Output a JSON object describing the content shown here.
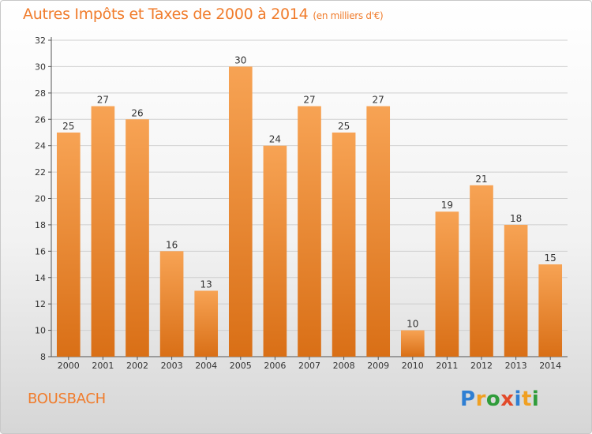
{
  "header": {
    "title": "Autres Impôts et Taxes de 2000 à 2014",
    "unit": "(en milliers d'€)"
  },
  "location": "BOUSBACH",
  "logo": {
    "letters": [
      "P",
      "r",
      "o",
      "x",
      "i",
      "t",
      "i"
    ],
    "colors": [
      "#2f7fd3",
      "#f0a022",
      "#2f9c3a",
      "#e24a2a",
      "#2f7fd3",
      "#f0a022",
      "#2f9c3a"
    ]
  },
  "chart_data": {
    "type": "bar",
    "categories": [
      "2000",
      "2001",
      "2002",
      "2003",
      "2004",
      "2005",
      "2006",
      "2007",
      "2008",
      "2009",
      "2010",
      "2011",
      "2012",
      "2013",
      "2014"
    ],
    "values": [
      25,
      27,
      26,
      16,
      13,
      30,
      24,
      27,
      25,
      27,
      10,
      19,
      21,
      18,
      15
    ],
    "yticks": [
      8,
      10,
      12,
      14,
      16,
      18,
      20,
      22,
      24,
      26,
      28,
      30,
      32
    ],
    "ylim": [
      8,
      32
    ],
    "grid": true,
    "colors": {
      "bar_top": "#f7a354",
      "bar_bottom": "#d96f16",
      "grid": "#cfcfcf",
      "text": "#333333"
    }
  }
}
